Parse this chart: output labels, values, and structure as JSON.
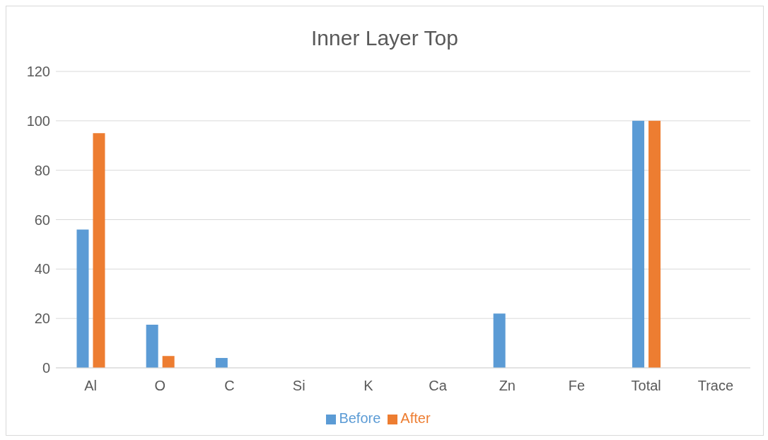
{
  "chart_data": {
    "type": "bar",
    "title": "Inner Layer Top",
    "categories": [
      "Al",
      "O",
      "C",
      "Si",
      "K",
      "Ca",
      "Zn",
      "Fe",
      "Total",
      "Trace"
    ],
    "series": [
      {
        "name": "Before",
        "color": "#5b9bd5",
        "values": [
          56,
          17.5,
          4,
          null,
          0,
          0,
          22,
          0,
          100,
          null
        ]
      },
      {
        "name": "After",
        "color": "#ed7d31",
        "values": [
          95,
          4.8,
          0,
          null,
          0,
          0,
          0,
          0,
          100,
          0
        ]
      }
    ],
    "ylim": [
      0,
      120
    ],
    "yticks": [
      0,
      20,
      40,
      60,
      80,
      100,
      120
    ],
    "grid": "y",
    "legend": "bottom"
  }
}
